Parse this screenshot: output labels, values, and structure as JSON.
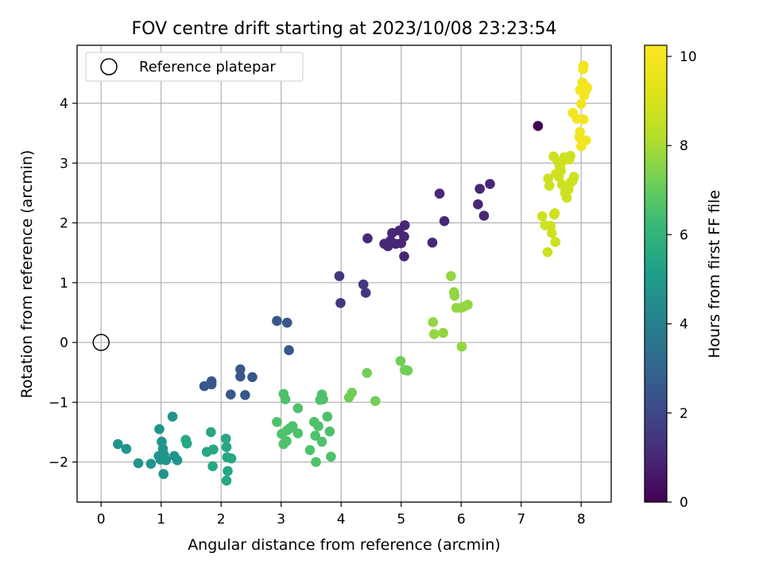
{
  "chart_data": {
    "type": "scatter",
    "title": "FOV centre drift starting at 2023/10/08 23:23:54",
    "xlabel": "Angular distance from reference (arcmin)",
    "ylabel": "Rotation from reference (arcmin)",
    "xlim": [
      -0.4,
      8.5
    ],
    "ylim": [
      -2.67,
      4.97
    ],
    "xticks": [
      0,
      1,
      2,
      3,
      4,
      5,
      6,
      7,
      8
    ],
    "yticks": [
      -2,
      -1,
      0,
      1,
      2,
      3,
      4
    ],
    "grid": true,
    "legend": {
      "placement": "upper-left",
      "entries": [
        "Reference platepar"
      ]
    },
    "colorbar": {
      "label": "Hours from first FF file",
      "range": [
        0,
        10.25
      ],
      "ticks": [
        0,
        2,
        4,
        6,
        8,
        10
      ],
      "colormap": "viridis"
    },
    "reference_point": {
      "x": 0,
      "y": 0,
      "label": "Reference platepar"
    },
    "series": [
      {
        "hours": 0.0,
        "points": [
          [
            7.28,
            3.62
          ]
        ]
      },
      {
        "hours": 1.0,
        "points": [
          [
            6.48,
            2.65
          ],
          [
            6.31,
            2.57
          ],
          [
            6.28,
            2.31
          ],
          [
            6.38,
            2.12
          ],
          [
            5.64,
            2.49
          ],
          [
            5.72,
            2.03
          ],
          [
            5.52,
            1.67
          ],
          [
            5.06,
            1.96
          ],
          [
            5.05,
            1.77
          ],
          [
            4.97,
            1.87
          ],
          [
            4.91,
            1.65
          ],
          [
            4.85,
            1.83
          ],
          [
            4.72,
            1.65
          ],
          [
            4.78,
            1.61
          ],
          [
            4.82,
            1.7
          ],
          [
            5.0,
            1.66
          ],
          [
            5.05,
            1.44
          ],
          [
            4.44,
            1.74
          ]
        ]
      },
      {
        "hours": 1.5,
        "points": [
          [
            3.97,
            1.11
          ],
          [
            3.99,
            0.66
          ],
          [
            4.37,
            0.97
          ],
          [
            4.41,
            0.83
          ]
        ]
      },
      {
        "hours": 2.5,
        "points": [
          [
            2.93,
            0.36
          ],
          [
            3.1,
            0.33
          ],
          [
            3.13,
            -0.13
          ],
          [
            2.32,
            -0.45
          ],
          [
            2.32,
            -0.57
          ],
          [
            2.52,
            -0.58
          ],
          [
            2.4,
            -0.88
          ],
          [
            2.16,
            -0.87
          ],
          [
            1.72,
            -0.73
          ],
          [
            1.84,
            -0.65
          ],
          [
            1.84,
            -0.7
          ]
        ]
      },
      {
        "hours": 4.8,
        "points": [
          [
            0.28,
            -1.7
          ],
          [
            0.42,
            -1.78
          ],
          [
            0.62,
            -2.02
          ],
          [
            0.83,
            -2.03
          ],
          [
            0.97,
            -1.45
          ],
          [
            0.96,
            -1.9
          ],
          [
            1.01,
            -1.66
          ],
          [
            1.03,
            -1.78
          ],
          [
            1.05,
            -1.88
          ],
          [
            0.99,
            -1.96
          ],
          [
            1.08,
            -1.97
          ],
          [
            1.04,
            -2.2
          ],
          [
            1.19,
            -1.24
          ],
          [
            1.22,
            -1.9
          ],
          [
            1.27,
            -1.97
          ]
        ]
      },
      {
        "hours": 5.5,
        "points": [
          [
            1.41,
            -1.63
          ],
          [
            1.43,
            -1.69
          ],
          [
            1.76,
            -1.83
          ],
          [
            1.83,
            -1.5
          ],
          [
            1.87,
            -1.79
          ],
          [
            1.86,
            -2.07
          ],
          [
            2.08,
            -1.61
          ],
          [
            2.09,
            -1.75
          ],
          [
            2.1,
            -1.92
          ],
          [
            2.17,
            -1.94
          ],
          [
            2.11,
            -2.15
          ],
          [
            2.09,
            -2.31
          ]
        ]
      },
      {
        "hours": 6.6,
        "points": [
          [
            2.93,
            -1.33
          ],
          [
            3.01,
            -1.53
          ],
          [
            3.04,
            -0.86
          ],
          [
            3.07,
            -0.95
          ],
          [
            3.04,
            -1.7
          ],
          [
            3.09,
            -1.65
          ],
          [
            3.14,
            -1.44
          ],
          [
            3.19,
            -1.4
          ],
          [
            3.1,
            -1.47
          ],
          [
            3.28,
            -1.1
          ],
          [
            3.28,
            -1.52
          ],
          [
            3.48,
            -1.8
          ],
          [
            3.55,
            -1.33
          ],
          [
            3.57,
            -1.56
          ],
          [
            3.58,
            -2.0
          ],
          [
            3.62,
            -1.4
          ],
          [
            3.65,
            -0.96
          ],
          [
            3.68,
            -0.87
          ],
          [
            3.7,
            -0.95
          ],
          [
            3.68,
            -1.66
          ],
          [
            3.77,
            -1.24
          ],
          [
            3.81,
            -1.49
          ],
          [
            3.83,
            -1.91
          ]
        ]
      },
      {
        "hours": 7.2,
        "points": [
          [
            4.13,
            -0.92
          ],
          [
            4.18,
            -0.84
          ],
          [
            4.43,
            -0.51
          ],
          [
            4.57,
            -0.98
          ],
          [
            4.99,
            -0.31
          ],
          [
            5.06,
            -0.46
          ],
          [
            5.11,
            -0.47
          ]
        ]
      },
      {
        "hours": 7.7,
        "points": [
          [
            5.53,
            0.34
          ],
          [
            5.55,
            0.14
          ],
          [
            5.7,
            0.16
          ],
          [
            5.83,
            1.11
          ],
          [
            5.88,
            0.84
          ],
          [
            5.89,
            0.78
          ],
          [
            5.92,
            0.58
          ],
          [
            6.0,
            0.58
          ],
          [
            6.05,
            0.6
          ],
          [
            6.11,
            0.63
          ],
          [
            6.01,
            -0.07
          ]
        ]
      },
      {
        "hours": 8.8,
        "points": [
          [
            7.35,
            2.11
          ],
          [
            7.4,
            1.96
          ],
          [
            7.44,
            1.51
          ],
          [
            7.45,
            2.74
          ],
          [
            7.47,
            2.62
          ],
          [
            7.49,
            1.95
          ],
          [
            7.51,
            1.83
          ],
          [
            7.54,
            3.11
          ],
          [
            7.55,
            2.14
          ],
          [
            7.56,
            2.16
          ],
          [
            7.57,
            1.68
          ],
          [
            7.58,
            2.82
          ],
          [
            7.61,
            3.03
          ],
          [
            7.63,
            2.77
          ],
          [
            7.64,
            2.96
          ],
          [
            7.65,
            2.93
          ],
          [
            7.66,
            2.87
          ],
          [
            7.68,
            2.64
          ],
          [
            7.7,
            3.04
          ],
          [
            7.72,
            3.1
          ],
          [
            7.73,
            2.5
          ],
          [
            7.75,
            2.57
          ],
          [
            7.76,
            2.42
          ],
          [
            7.79,
            2.56
          ],
          [
            7.8,
            3.06
          ],
          [
            7.82,
            3.12
          ],
          [
            7.83,
            2.68
          ],
          [
            7.86,
            2.71
          ],
          [
            7.88,
            2.77
          ]
        ]
      },
      {
        "hours": 9.9,
        "points": [
          [
            7.86,
            3.84
          ],
          [
            7.93,
            3.74
          ],
          [
            7.97,
            3.43
          ],
          [
            8.0,
            3.28
          ],
          [
            7.98,
            3.52
          ],
          [
            8.04,
            3.73
          ],
          [
            8.08,
            3.38
          ],
          [
            7.98,
            4.22
          ],
          [
            8.0,
            3.99
          ],
          [
            8.02,
            4.35
          ],
          [
            8.04,
            4.32
          ],
          [
            8.05,
            4.13
          ],
          [
            8.06,
            4.24
          ],
          [
            8.03,
            4.57
          ],
          [
            8.04,
            4.63
          ],
          [
            8.07,
            4.2
          ],
          [
            8.1,
            4.26
          ]
        ]
      }
    ]
  }
}
